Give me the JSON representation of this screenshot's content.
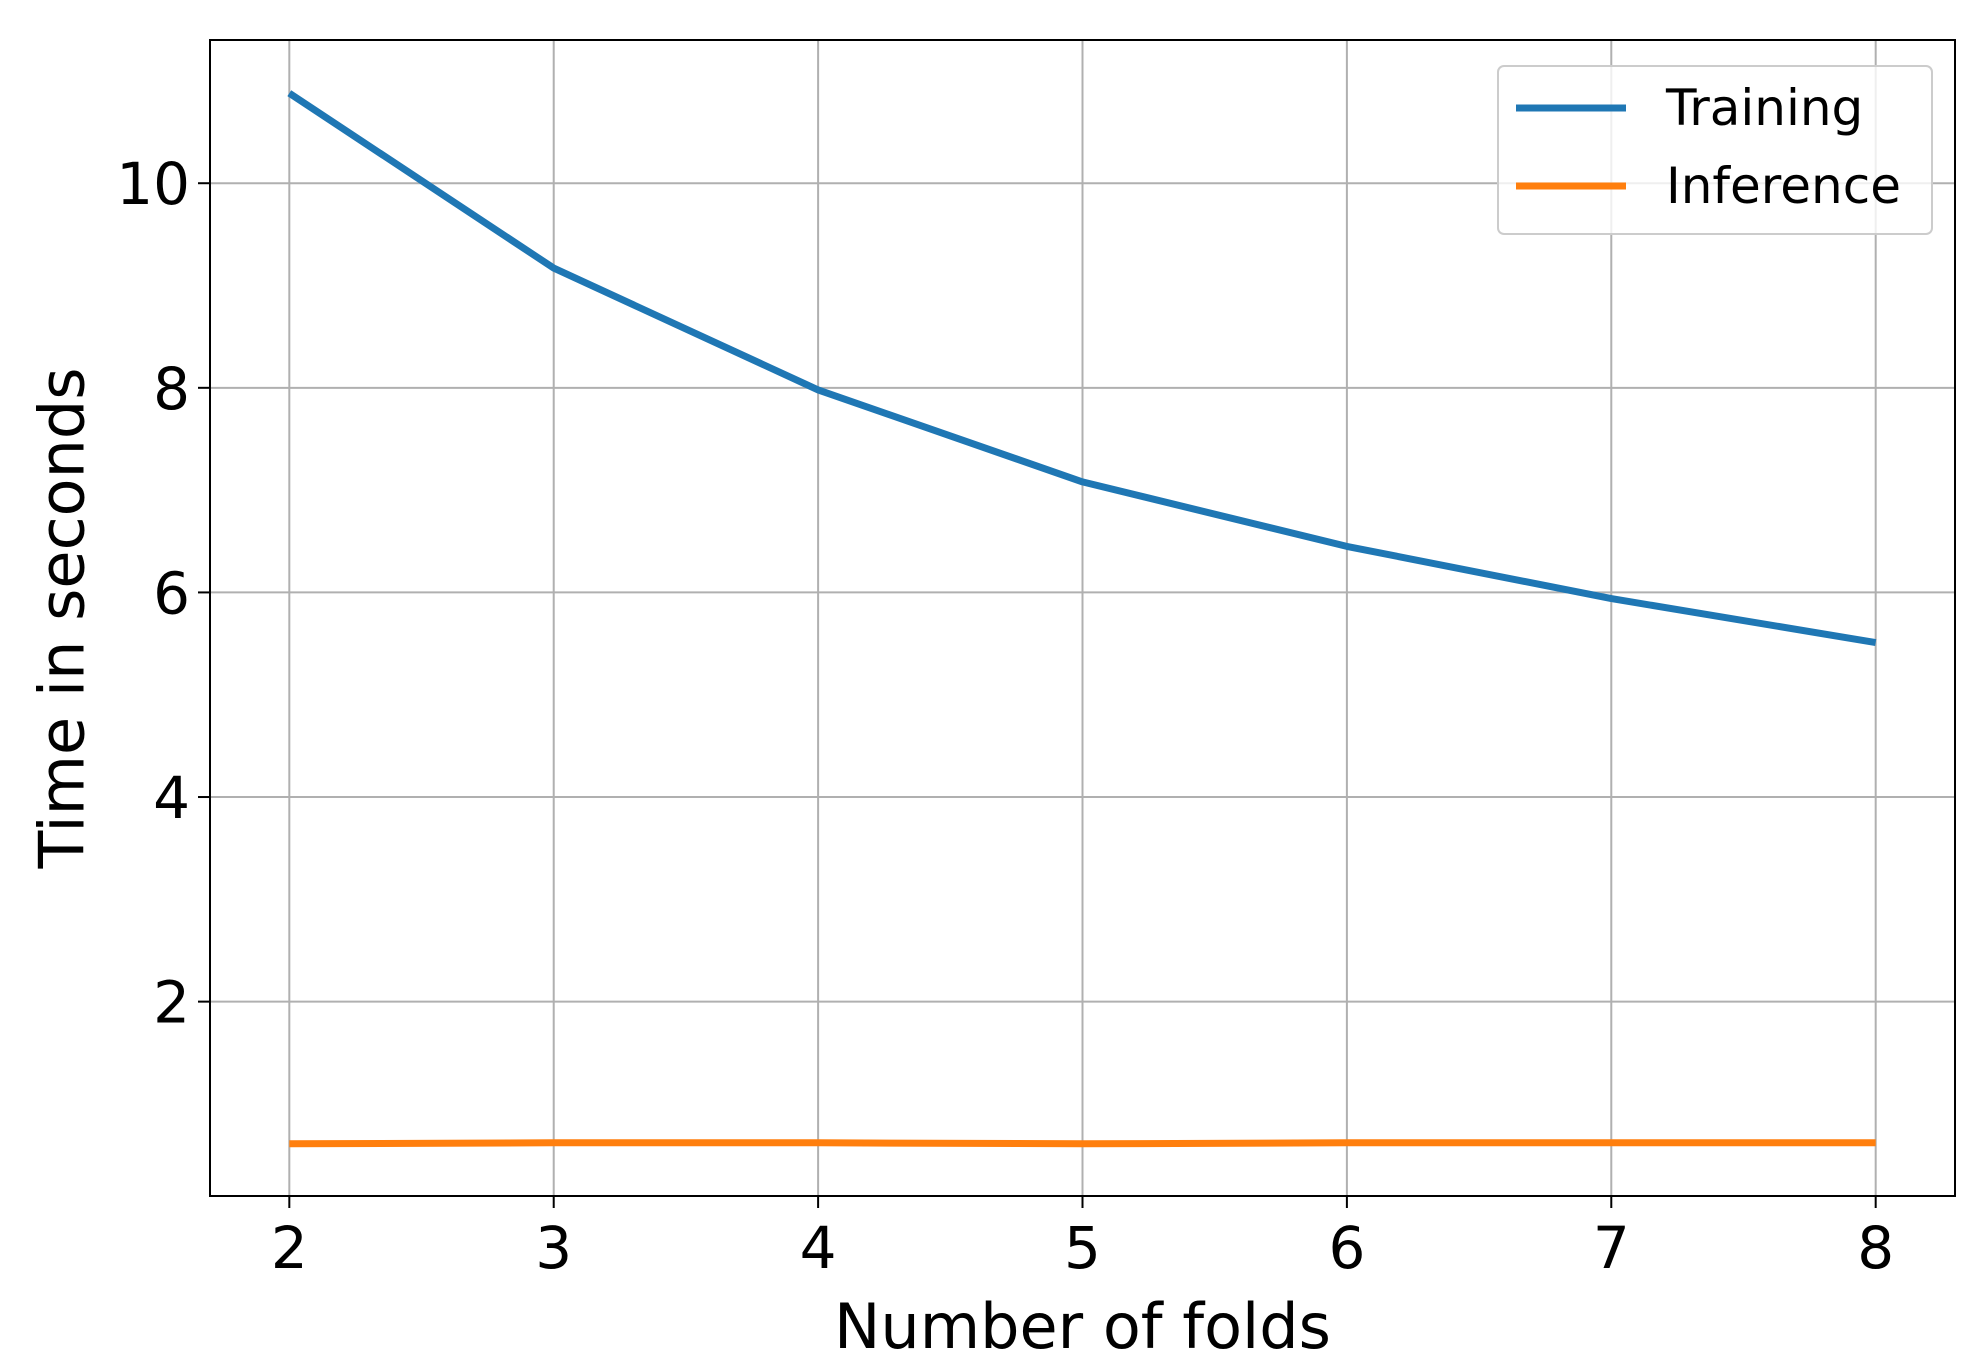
{
  "chart_data": {
    "type": "line",
    "title": "",
    "xlabel": "Number of folds",
    "ylabel": "Time in seconds",
    "x": [
      2,
      3,
      4,
      5,
      6,
      7,
      8
    ],
    "xticks": [
      "2",
      "3",
      "4",
      "5",
      "6",
      "7",
      "8"
    ],
    "yticks": [
      "2",
      "4",
      "6",
      "8",
      "10"
    ],
    "xlim": [
      1.7,
      8.3
    ],
    "ylim": [
      0.1,
      11.4
    ],
    "grid": true,
    "legend_position": "top-right",
    "series": [
      {
        "name": "Training",
        "color": "#1f77b4",
        "values": [
          10.88,
          9.17,
          7.98,
          7.08,
          6.45,
          5.94,
          5.51
        ]
      },
      {
        "name": "Inference",
        "color": "#ff7f0e",
        "values": [
          0.61,
          0.62,
          0.62,
          0.61,
          0.62,
          0.62,
          0.62
        ]
      }
    ]
  }
}
